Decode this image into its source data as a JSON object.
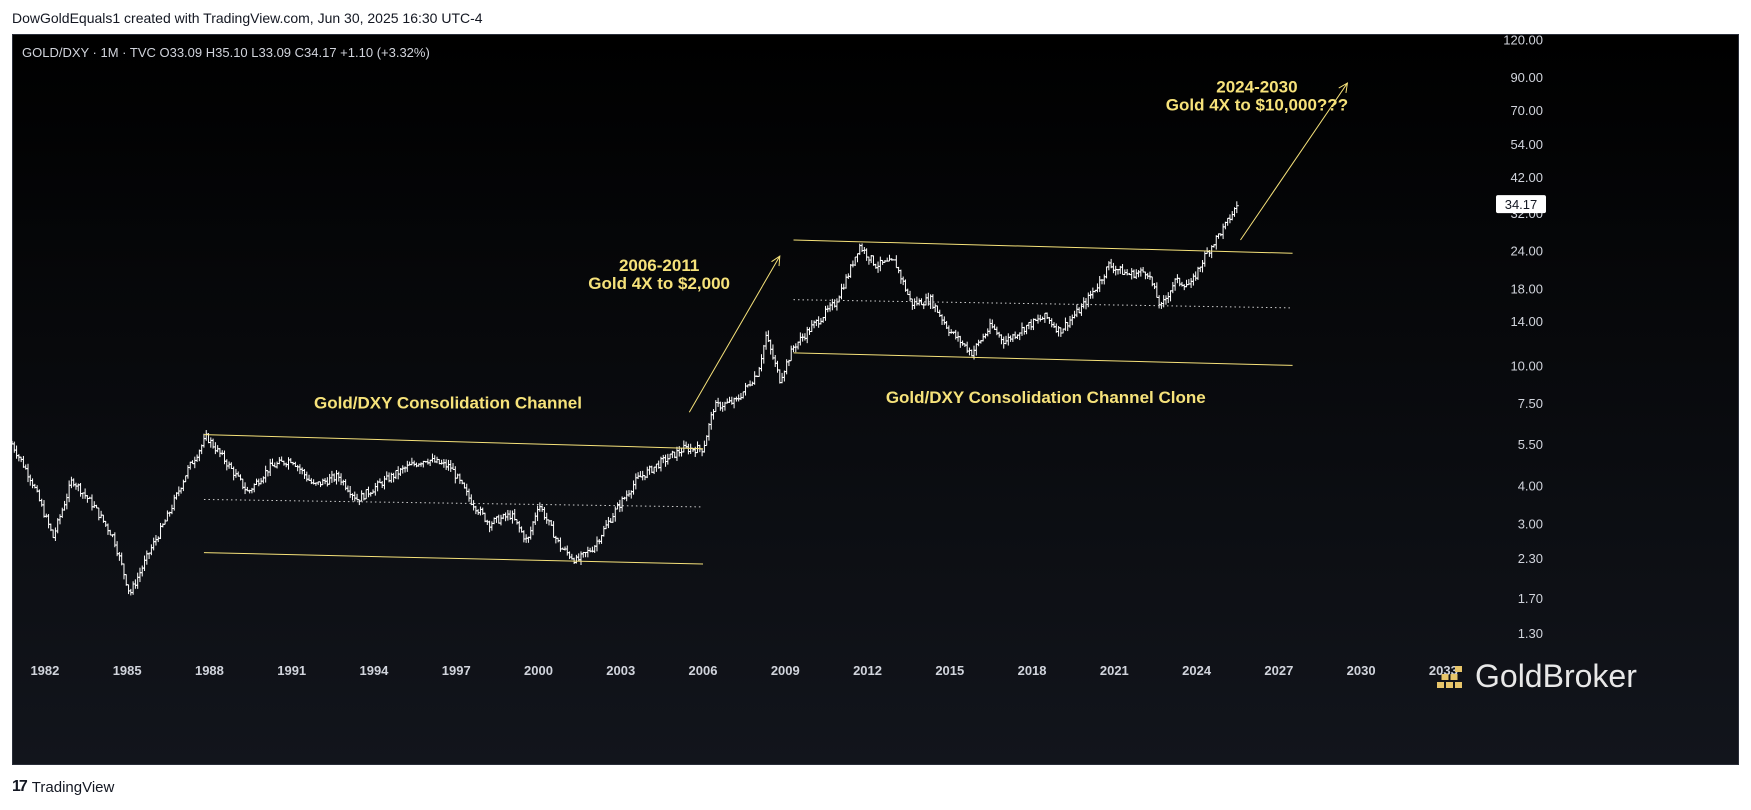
{
  "header": {
    "text": "DowGoldEquals1 created with TradingView.com, Jun 30, 2025 16:30 UTC-4"
  },
  "legend": {
    "text": "GOLD/DXY · 1M · TVC  O33.09  H35.10  L33.09  C34.17  +1.10 (+3.32%)"
  },
  "footer": {
    "logo_glyph": "17",
    "text": "TradingView"
  },
  "brand": {
    "text": "GoldBroker",
    "icon": "gold-bars-icon"
  },
  "colors": {
    "background": "#000000",
    "annotation": "#f6e27a",
    "channel": "#f6e27a",
    "candle": "#ffffff",
    "axis_text": "#d1d4dc"
  },
  "chart_data": {
    "type": "bar",
    "symbol": "GOLD/DXY",
    "interval": "1M",
    "scale": "log",
    "grid": false,
    "ylim": [
      1.1,
      125
    ],
    "xlim": [
      1980.8,
      2034.7
    ],
    "x_ticks": [
      "1982",
      "1985",
      "1988",
      "1991",
      "1994",
      "1997",
      "2000",
      "2003",
      "2006",
      "2009",
      "2012",
      "2015",
      "2018",
      "2021",
      "2024",
      "2027",
      "2030",
      "2033"
    ],
    "y_ticks": [
      "120.00",
      "90.00",
      "70.00",
      "54.00",
      "42.00",
      "32.00",
      "24.00",
      "18.00",
      "14.00",
      "10.00",
      "7.50",
      "5.50",
      "4.00",
      "3.00",
      "2.30",
      "1.70",
      "1.30"
    ],
    "last_price": "34.17",
    "ohlc_last": {
      "open": 33.09,
      "high": 35.1,
      "low": 33.09,
      "close": 34.17,
      "change": "+1.10",
      "change_pct": "+3.32%"
    },
    "price_path": [
      [
        1980.8,
        5.5
      ],
      [
        1981.5,
        4.2
      ],
      [
        1982.3,
        2.7
      ],
      [
        1983.0,
        4.2
      ],
      [
        1983.8,
        3.4
      ],
      [
        1984.5,
        2.7
      ],
      [
        1985.1,
        1.75
      ],
      [
        1985.8,
        2.4
      ],
      [
        1986.5,
        3.2
      ],
      [
        1987.2,
        4.5
      ],
      [
        1987.9,
        5.8
      ],
      [
        1988.6,
        4.8
      ],
      [
        1989.4,
        3.8
      ],
      [
        1990.2,
        4.6
      ],
      [
        1991.0,
        4.9
      ],
      [
        1991.8,
        4.0
      ],
      [
        1992.7,
        4.3
      ],
      [
        1993.4,
        3.6
      ],
      [
        1994.3,
        4.1
      ],
      [
        1995.2,
        4.6
      ],
      [
        1995.9,
        4.9
      ],
      [
        1996.8,
        4.6
      ],
      [
        1997.5,
        3.6
      ],
      [
        1998.2,
        3.0
      ],
      [
        1999.0,
        3.2
      ],
      [
        1999.6,
        2.6
      ],
      [
        2000.0,
        3.5
      ],
      [
        2000.8,
        2.5
      ],
      [
        2001.4,
        2.25
      ],
      [
        2002.0,
        2.5
      ],
      [
        2002.8,
        3.3
      ],
      [
        2003.6,
        4.2
      ],
      [
        2004.5,
        4.8
      ],
      [
        2005.3,
        5.3
      ],
      [
        2006.0,
        5.3
      ],
      [
        2006.4,
        7.3
      ],
      [
        2007.2,
        7.6
      ],
      [
        2008.0,
        9.5
      ],
      [
        2008.3,
        12.5
      ],
      [
        2008.8,
        9.0
      ],
      [
        2009.3,
        11.5
      ],
      [
        2010.0,
        13.5
      ],
      [
        2010.8,
        16.0
      ],
      [
        2011.3,
        20.0
      ],
      [
        2011.7,
        25.0
      ],
      [
        2012.3,
        21.5
      ],
      [
        2013.0,
        22.0
      ],
      [
        2013.6,
        16.0
      ],
      [
        2014.3,
        16.5
      ],
      [
        2015.0,
        13.0
      ],
      [
        2015.8,
        11.0
      ],
      [
        2016.5,
        13.5
      ],
      [
        2017.0,
        12.0
      ],
      [
        2017.8,
        13.5
      ],
      [
        2018.5,
        14.5
      ],
      [
        2019.0,
        13.0
      ],
      [
        2019.8,
        15.5
      ],
      [
        2020.4,
        18.5
      ],
      [
        2020.8,
        21.5
      ],
      [
        2021.5,
        20.0
      ],
      [
        2022.2,
        20.5
      ],
      [
        2022.7,
        15.5
      ],
      [
        2023.2,
        19.0
      ],
      [
        2023.8,
        18.5
      ],
      [
        2024.3,
        23.0
      ],
      [
        2024.8,
        27.0
      ],
      [
        2025.0,
        28.5
      ],
      [
        2025.5,
        34.17
      ]
    ],
    "channel_lines": [
      {
        "x": [
          1987.8,
          2006.0
        ],
        "y": [
          5.9,
          5.3
        ],
        "style": "solid"
      },
      {
        "x": [
          1987.8,
          2006.0
        ],
        "y": [
          3.6,
          3.4
        ],
        "style": "dotted"
      },
      {
        "x": [
          1987.8,
          2006.0
        ],
        "y": [
          2.4,
          2.2
        ],
        "style": "solid"
      },
      {
        "x": [
          2009.3,
          2027.5
        ],
        "y": [
          26.0,
          23.5
        ],
        "style": "solid"
      },
      {
        "x": [
          2009.3,
          2027.5
        ],
        "y": [
          16.5,
          15.5
        ],
        "style": "dotted"
      },
      {
        "x": [
          2009.3,
          2027.5
        ],
        "y": [
          11.0,
          10.0
        ],
        "style": "solid"
      }
    ],
    "arrows": [
      {
        "x": [
          2005.5,
          2008.8
        ],
        "y": [
          7.0,
          23.0
        ]
      },
      {
        "x": [
          2025.6,
          2029.5
        ],
        "y": [
          26.0,
          86.0
        ]
      }
    ],
    "annotations": [
      {
        "lines": [
          "Gold/DXY Consolidation Channel"
        ],
        "x": 1996.7,
        "y": 7.2,
        "size": 17
      },
      {
        "lines": [
          "2006-2011",
          "Gold 4X to $2,000"
        ],
        "x": 2004.4,
        "y": 20.5,
        "size": 17
      },
      {
        "lines": [
          "Gold/DXY Consolidation Channel Clone"
        ],
        "x": 2018.5,
        "y": 7.5,
        "size": 17
      },
      {
        "lines": [
          "2024-2030",
          "Gold 4X to $10,000???"
        ],
        "x": 2026.2,
        "y": 80.0,
        "size": 17
      }
    ]
  }
}
